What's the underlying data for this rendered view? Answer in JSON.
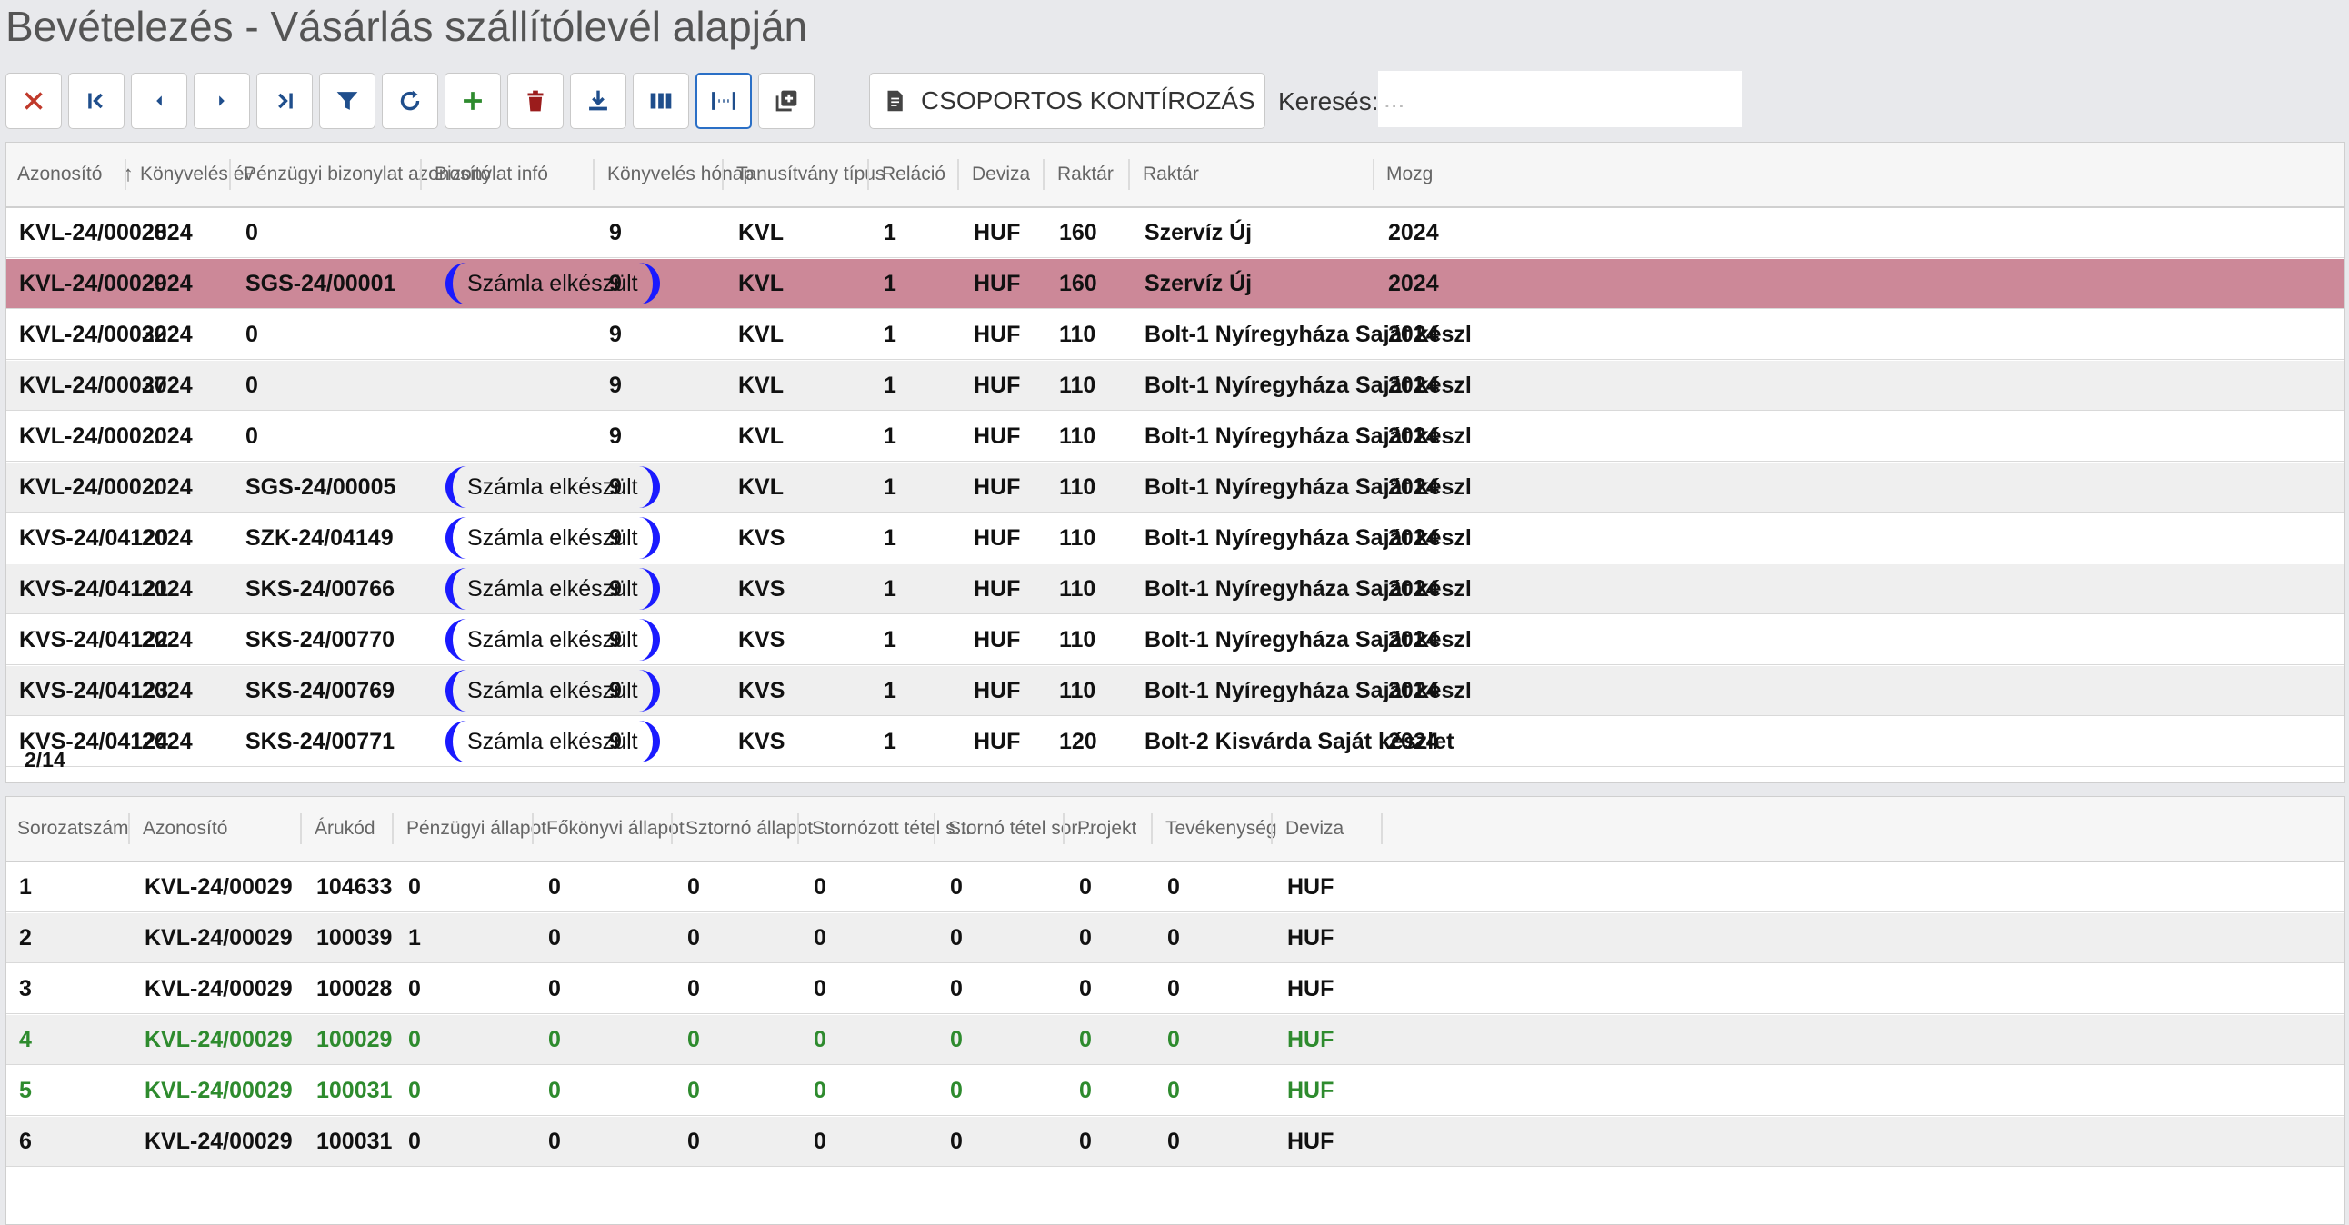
{
  "page": {
    "title": "Bevételezés - Vásárlás szállítólevél alapján"
  },
  "toolbar": {
    "buttons": [
      {
        "icon": "close-icon",
        "color": "#c0392b"
      },
      {
        "icon": "first-page-icon",
        "color": "#1f4e8c"
      },
      {
        "icon": "previous-icon",
        "color": "#1f4e8c"
      },
      {
        "icon": "next-icon",
        "color": "#1f4e8c"
      },
      {
        "icon": "last-page-icon",
        "color": "#1f4e8c"
      },
      {
        "icon": "filter-icon",
        "color": "#1f4e8c"
      },
      {
        "icon": "refresh-icon",
        "color": "#1f4e8c"
      },
      {
        "icon": "add-icon",
        "color": "#2e8b2e"
      },
      {
        "icon": "delete-icon",
        "color": "#9b1c1c"
      },
      {
        "icon": "download-icon",
        "color": "#1f4e8c"
      },
      {
        "icon": "columns-icon",
        "color": "#1f4e8c"
      },
      {
        "icon": "column-width-icon",
        "color": "#1f4e8c"
      },
      {
        "icon": "add-copy-icon",
        "color": "#444"
      }
    ],
    "bulk_label": "CSOPORTOS KONTÍROZÁS",
    "search_label": "Keresés:",
    "search_placeholder": "..."
  },
  "main_grid": {
    "columns": [
      "Azonosító",
      "Könyvelés év",
      "Pénzügyi bizonylat azonosító",
      "Bizonylat infó",
      "Könyvelés hónap",
      "Tanusítvány típus",
      "Reláció",
      "Deviza",
      "Raktár",
      "Raktár",
      "Mozg"
    ],
    "sort_indicator": "↑",
    "rows": [
      {
        "id": "KVL-24/00028",
        "year": "2024",
        "doc": "0",
        "info": "",
        "month": "9",
        "type": "KVL",
        "rel": "1",
        "cur": "HUF",
        "wh": "160",
        "whname": "Szervíz Új",
        "mozg": "2024"
      },
      {
        "id": "KVL-24/00029",
        "year": "2024",
        "doc": "SGS-24/00001",
        "info": "Számla elkészült",
        "month": "9",
        "type": "KVL",
        "rel": "1",
        "cur": "HUF",
        "wh": "160",
        "whname": "Szervíz Új",
        "mozg": "2024",
        "selected": true
      },
      {
        "id": "KVL-24/00032",
        "year": "2024",
        "doc": "0",
        "info": "",
        "month": "9",
        "type": "KVL",
        "rel": "1",
        "cur": "HUF",
        "wh": "110",
        "whname": "Bolt-1 Nyíregyháza Saját készl",
        "mozg": "2024"
      },
      {
        "id": "KVL-24/00037",
        "year": "2024",
        "doc": "0",
        "info": "",
        "month": "9",
        "type": "KVL",
        "rel": "1",
        "cur": "HUF",
        "wh": "110",
        "whname": "Bolt-1 Nyíregyháza Saját készl",
        "mozg": "2024"
      },
      {
        "id": "KVL-24/000...",
        "year": "2024",
        "doc": "0",
        "info": "",
        "month": "9",
        "type": "KVL",
        "rel": "1",
        "cur": "HUF",
        "wh": "110",
        "whname": "Bolt-1 Nyíregyháza Saját készl",
        "mozg": "2024"
      },
      {
        "id": "KVL-24/000...",
        "year": "2024",
        "doc": "SGS-24/00005",
        "info": "Számla elkészült",
        "month": "9",
        "type": "KVL",
        "rel": "1",
        "cur": "HUF",
        "wh": "110",
        "whname": "Bolt-1 Nyíregyháza Saját készl",
        "mozg": "2024"
      },
      {
        "id": "KVS-24/04120",
        "year": "2024",
        "doc": "SZK-24/04149",
        "info": "Számla elkészült",
        "month": "9",
        "type": "KVS",
        "rel": "1",
        "cur": "HUF",
        "wh": "110",
        "whname": "Bolt-1 Nyíregyháza Saját készl",
        "mozg": "2024"
      },
      {
        "id": "KVS-24/04121",
        "year": "2024",
        "doc": "SKS-24/00766",
        "info": "Számla elkészült",
        "month": "9",
        "type": "KVS",
        "rel": "1",
        "cur": "HUF",
        "wh": "110",
        "whname": "Bolt-1 Nyíregyháza Saját készl",
        "mozg": "2024"
      },
      {
        "id": "KVS-24/04122",
        "year": "2024",
        "doc": "SKS-24/00770",
        "info": "Számla elkészült",
        "month": "9",
        "type": "KVS",
        "rel": "1",
        "cur": "HUF",
        "wh": "110",
        "whname": "Bolt-1 Nyíregyháza Saját készl",
        "mozg": "2024"
      },
      {
        "id": "KVS-24/04123",
        "year": "2024",
        "doc": "SKS-24/00769",
        "info": "Számla elkészült",
        "month": "9",
        "type": "KVS",
        "rel": "1",
        "cur": "HUF",
        "wh": "110",
        "whname": "Bolt-1 Nyíregyháza Saját készl",
        "mozg": "2024"
      },
      {
        "id": "KVS-24/04124",
        "year": "2024",
        "doc": "SKS-24/00771",
        "info": "Számla elkészült",
        "month": "9",
        "type": "KVS",
        "rel": "1",
        "cur": "HUF",
        "wh": "120",
        "whname": "Bolt-2 Kisvárda Saját készlet",
        "mozg": "2024"
      }
    ],
    "pager": "2/14"
  },
  "detail_grid": {
    "columns": [
      "Sorozatszám",
      "Azonosító",
      "Árukód",
      "Pénzügyi állapot",
      "Főkönyvi állapot",
      "Sztornó állapot",
      "Stornózott tétel s...",
      "Stornó tétel sor...",
      "Projekt",
      "Tevékenység",
      "Deviza"
    ],
    "rows": [
      {
        "seq": "1",
        "id": "KVL-24/00029",
        "code": "104633",
        "fin": "0",
        "gl": "0",
        "storno": "0",
        "stornoed": "0",
        "stornoline": "0",
        "project": "0",
        "activity": "0",
        "cur": "HUF"
      },
      {
        "seq": "2",
        "id": "KVL-24/00029",
        "code": "100039",
        "fin": "1",
        "gl": "0",
        "storno": "0",
        "stornoed": "0",
        "stornoline": "0",
        "project": "0",
        "activity": "0",
        "cur": "HUF"
      },
      {
        "seq": "3",
        "id": "KVL-24/00029",
        "code": "100028",
        "fin": "0",
        "gl": "0",
        "storno": "0",
        "stornoed": "0",
        "stornoline": "0",
        "project": "0",
        "activity": "0",
        "cur": "HUF"
      },
      {
        "seq": "4",
        "id": "KVL-24/00029",
        "code": "100029",
        "fin": "0",
        "gl": "0",
        "storno": "0",
        "stornoed": "0",
        "stornoline": "0",
        "project": "0",
        "activity": "0",
        "cur": "HUF",
        "green": true
      },
      {
        "seq": "5",
        "id": "KVL-24/00029",
        "code": "100031",
        "fin": "0",
        "gl": "0",
        "storno": "0",
        "stornoed": "0",
        "stornoline": "0",
        "project": "0",
        "activity": "0",
        "cur": "HUF",
        "green": true
      },
      {
        "seq": "6",
        "id": "KVL-24/00029",
        "code": "100031",
        "fin": "0",
        "gl": "0",
        "storno": "0",
        "stornoed": "0",
        "stornoline": "0",
        "project": "0",
        "activity": "0",
        "cur": "HUF"
      }
    ]
  },
  "colors": {
    "selected_row": "#cc8898",
    "green_text": "#2e8b2e",
    "badge_border": "#1a1aff"
  }
}
